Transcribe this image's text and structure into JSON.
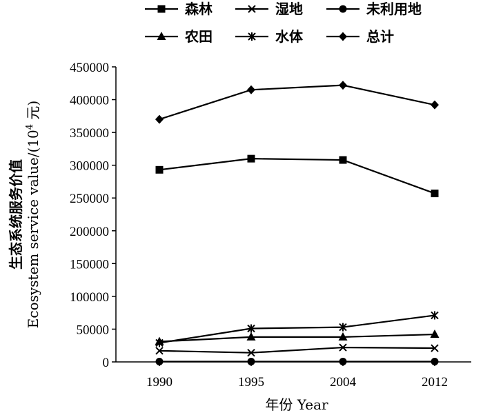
{
  "chart_data": {
    "type": "line",
    "x": [
      "1990",
      "1995",
      "2004",
      "2012"
    ],
    "xlabel": "年份 Year",
    "ylabel_line1": "生态系统服务价值",
    "ylabel_line2_prefix": "Ecosystem service value/(10",
    "ylabel_line2_sup": "4",
    "ylabel_line2_suffix": " 元)",
    "ylim": [
      0,
      450000
    ],
    "yticks": [
      "0",
      "50000",
      "100000",
      "150000",
      "200000",
      "250000",
      "300000",
      "350000",
      "400000",
      "450000"
    ],
    "grid": false,
    "legend_position": "top",
    "series": [
      {
        "name": "森林",
        "marker": "square",
        "values": [
          293000,
          310000,
          308000,
          257000
        ]
      },
      {
        "name": "湿地",
        "marker": "x",
        "values": [
          17000,
          14000,
          22000,
          21000
        ]
      },
      {
        "name": "未利用地",
        "marker": "circle",
        "values": [
          500,
          500,
          500,
          500
        ]
      },
      {
        "name": "农田",
        "marker": "triangle",
        "values": [
          31000,
          38000,
          38000,
          42000
        ]
      },
      {
        "name": "水体",
        "marker": "asterisk",
        "values": [
          29000,
          51000,
          53000,
          71000
        ]
      },
      {
        "name": "总计",
        "marker": "diamond",
        "values": [
          370000,
          415000,
          422000,
          392000
        ]
      }
    ]
  }
}
